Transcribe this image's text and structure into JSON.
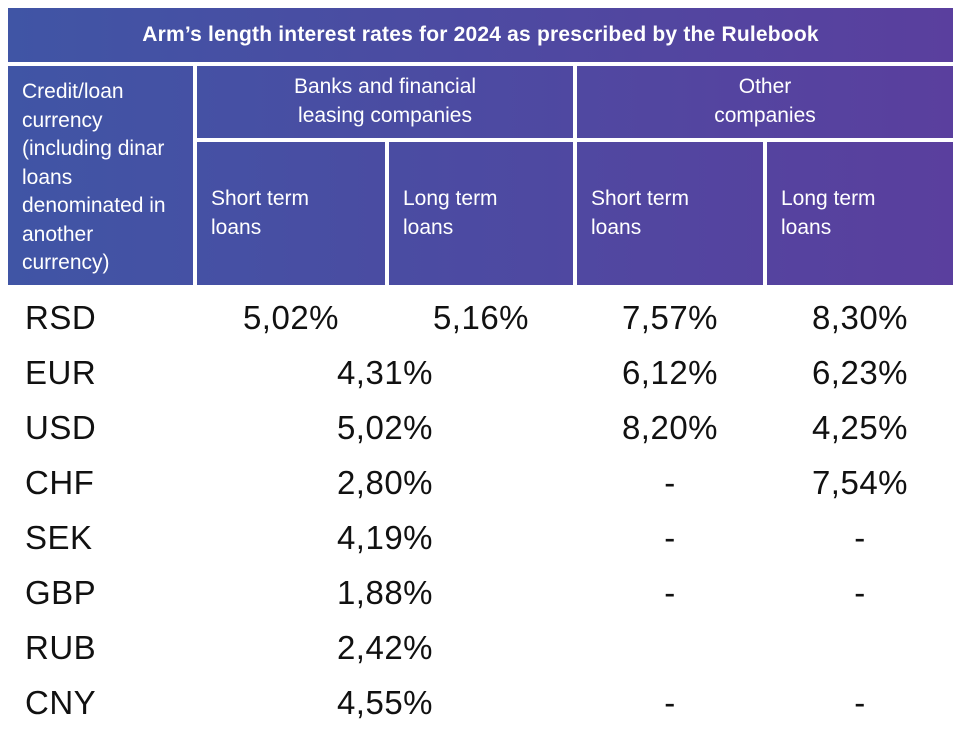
{
  "title": "Arm’s length interest rates for 2024 as prescribed by the Rulebook",
  "colors": {
    "gradient_start": "#4055A5",
    "gradient_end": "#5A3F9E",
    "header_text": "#FFFFFF",
    "body_text": "#111111"
  },
  "header": {
    "row_header": "Credit/loan currency (including dinar loans denominated in another currency)",
    "group_banks": "Banks and financial\nleasing companies",
    "group_other": "Other\ncompanies",
    "banks_short": "Short term\nloans",
    "banks_long": "Long term\nloans",
    "other_short": "Short term\nloans",
    "other_long": "Long term\nloans"
  },
  "rows": [
    {
      "currency": "RSD",
      "banks_short": "5,02%",
      "banks_long": "5,16%",
      "other_short": "7,57%",
      "other_long": "8,30%"
    },
    {
      "currency": "EUR",
      "banks": "4,31%",
      "other_short": "6,12%",
      "other_long": "6,23%"
    },
    {
      "currency": "USD",
      "banks": "5,02%",
      "other_short": "8,20%",
      "other_long": "4,25%"
    },
    {
      "currency": "CHF",
      "banks": "2,80%",
      "other_short": "-",
      "other_long": "7,54%"
    },
    {
      "currency": "SEK",
      "banks": "4,19%",
      "other_short": "-",
      "other_long": "-"
    },
    {
      "currency": "GBP",
      "banks": "1,88%",
      "other_short": "-",
      "other_long": "-"
    },
    {
      "currency": "RUB",
      "banks": "2,42%",
      "other_short": "",
      "other_long": ""
    },
    {
      "currency": "CNY",
      "banks": "4,55%",
      "other_short": "-",
      "other_long": "-"
    }
  ]
}
